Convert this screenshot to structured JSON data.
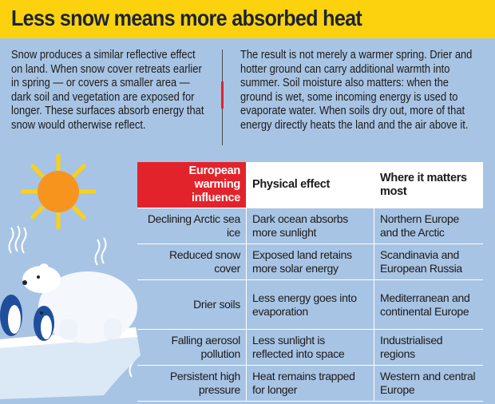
{
  "header": {
    "title": "Less snow means more absorbed heat"
  },
  "intro": {
    "left": "Snow produces a similar reflective effect on land. When snow cover retreats earlier in spring — or covers a smaller area — dark soil and vegetation are exposed for longer. These surfaces absorb energy that snow would otherwise reflect.",
    "right": "The result is not merely a warmer spring. Drier and hotter ground can carry additional warmth into summer. Soil moisture also matters: when the ground is wet, some incoming energy is used to evaporate water. When soils dry out, more of that energy directly heats the land and the air above it."
  },
  "table": {
    "columns": [
      "European warming influence",
      "Physical effect",
      "Where it matters most"
    ],
    "rows": [
      [
        "Declining Arctic sea ice",
        "Dark ocean absorbs more sunlight",
        "Northern Europe and the Arctic"
      ],
      [
        "Reduced snow cover",
        "Exposed land retains more solar energy",
        "Scandinavia and European Russia"
      ],
      [
        "Drier soils",
        "Less energy goes into evaporation",
        "Mediterranean and continental Europe"
      ],
      [
        "Falling aerosol pollution",
        "Less sunlight is reflected into space",
        "Industrialised regions"
      ],
      [
        "Persistent high pressure",
        "Heat remains trapped for longer",
        "Western and central Europe"
      ]
    ]
  }
}
